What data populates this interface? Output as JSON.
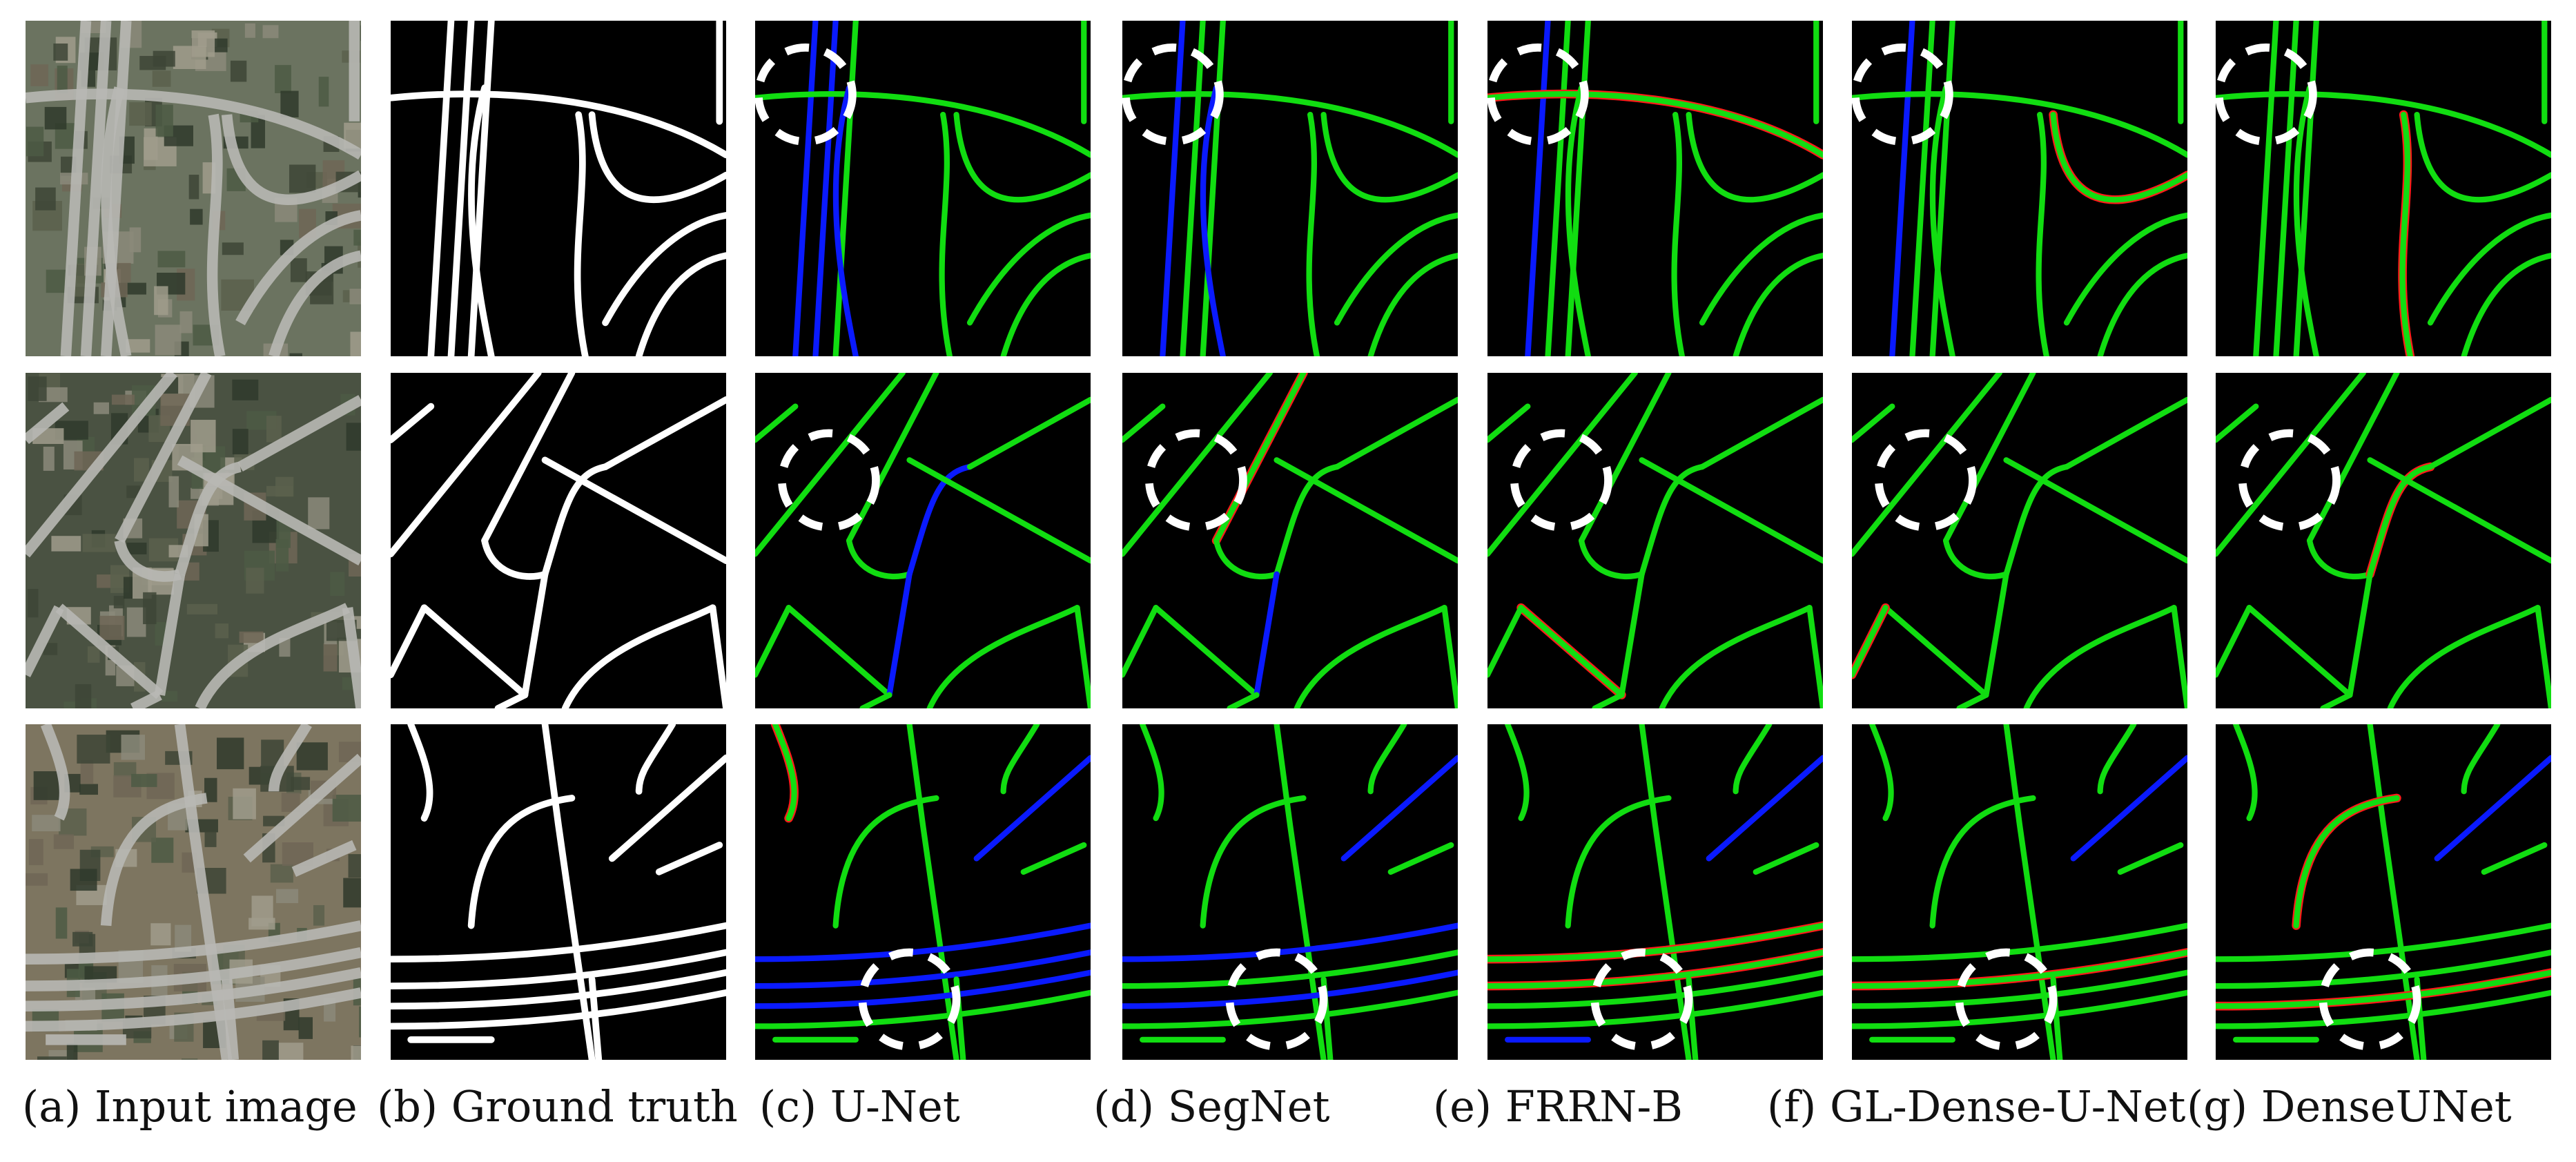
{
  "captions": [
    "(a) Input image",
    "(b) Ground truth",
    "(c) U-Net",
    "(d) SegNet",
    "(e) FRRN-B",
    "(f) GL-Dense-U-Net",
    "(g) DenseUNet"
  ],
  "colors": {
    "true_positive": "#11dd11",
    "false_negative": "#0a1aff",
    "false_positive": "#ff1a1a",
    "ground_truth": "#ffffff",
    "highlight_circle": "#ffffff"
  }
}
